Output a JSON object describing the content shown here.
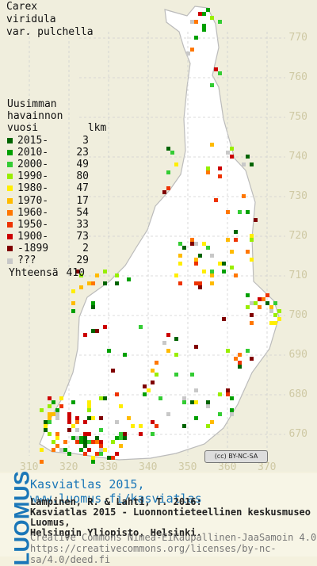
{
  "title": [
    "Carex",
    "viridula",
    "var. pulchella"
  ],
  "legend": {
    "header": [
      "Uusimman",
      "havainnon",
      "vuosi        lkm"
    ],
    "rows": [
      {
        "label": "2015-",
        "count": "3",
        "color": "#006400"
      },
      {
        "label": "2010-",
        "count": "23",
        "color": "#00a000"
      },
      {
        "label": "2000-",
        "count": "49",
        "color": "#33cc33"
      },
      {
        "label": "1990-",
        "count": "80",
        "color": "#99ee00"
      },
      {
        "label": "1980-",
        "count": "47",
        "color": "#ffee00"
      },
      {
        "label": "1970-",
        "count": "17",
        "color": "#ffbb00"
      },
      {
        "label": "1960-",
        "count": "54",
        "color": "#ff7700"
      },
      {
        "label": "1950-",
        "count": "33",
        "color": "#ee3300"
      },
      {
        "label": "1900-",
        "count": "73",
        "color": "#cc0000"
      },
      {
        "label": "-1899",
        "count": "2",
        "color": "#800000"
      },
      {
        "label": "???",
        "count": "29",
        "color": "#c8c8c8"
      }
    ],
    "total_label": "Yhteensä",
    "total_count": "410"
  },
  "map": {
    "y_labels": [
      "770",
      "760",
      "750",
      "740",
      "730",
      "720",
      "710",
      "700",
      "690",
      "680",
      "670"
    ],
    "x_labels": [
      "310",
      "320",
      "330",
      "340",
      "350",
      "360",
      "370"
    ],
    "license_badge": "(cc) BY-NC-SA",
    "land_color": "#ffffff",
    "border_color": "#bbbbbb",
    "sea_color": "#f0eedd"
  },
  "footer": {
    "logo": "LUOMUS",
    "headline": "Kasviatlas 2015, www.luomus.fi/kasviatlas",
    "citation": [
      "Lampinen, R. & Lahti, T. 2016:",
      "Kasviatlas 2015 - Luonnontieteellinen keskusmuseo Luomus,",
      "Helsingin Yliopisto, Helsinki."
    ],
    "license": [
      "Creative Commons Nimeä-EiKaupallinen-JaaSamoin 4.0",
      "https://creativecommons.org/licenses/by-nc-sa/4.0/deed.fi"
    ]
  }
}
